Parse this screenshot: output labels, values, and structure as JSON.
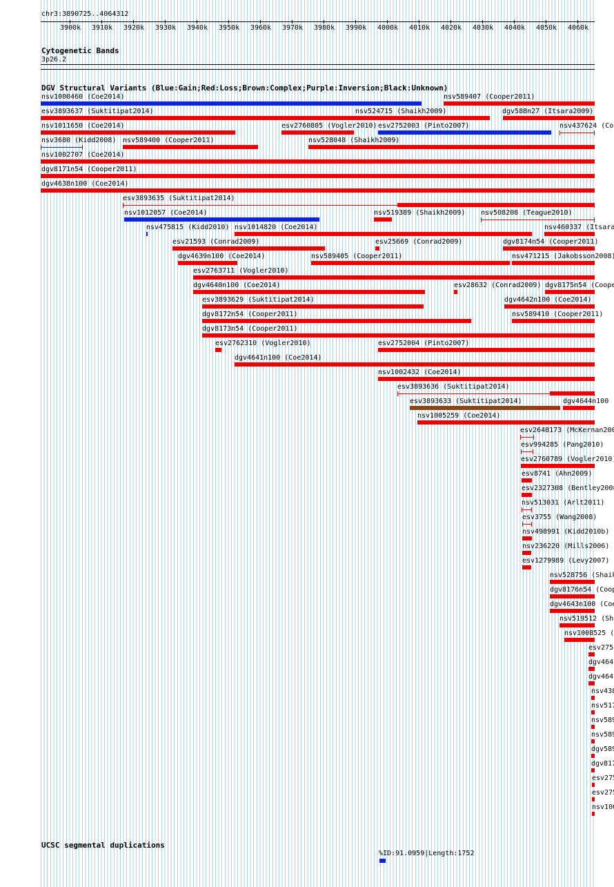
{
  "ruler": {
    "position": "chr3:3890725..4064312",
    "ticks": [
      "3900k",
      "3910k",
      "3920k",
      "3930k",
      "3940k",
      "3950k",
      "3960k",
      "3970k",
      "3980k",
      "3990k",
      "4000k",
      "4010k",
      "4020k",
      "4030k",
      "4040k",
      "4050k",
      "4060k"
    ]
  },
  "cytoband": {
    "title": "Cytogenetic Bands",
    "band": "3p26.2"
  },
  "dgv": {
    "title": "DGV Structural Variants (Blue:Gain;Red:Loss;Brown:Complex;Purple:Inversion;Black:Unknown)",
    "colors": {
      "gain": "#0b22e0",
      "loss": "#ee0000",
      "complex": "#8b4513",
      "inversion": "#800080",
      "unknown": "#000000"
    },
    "variants": [
      {
        "id": "nsv1000460",
        "study": "(Coe2014)",
        "type": "gain"
      },
      {
        "id": "nsv589407",
        "study": "(Cooper2011)",
        "type": "loss"
      },
      {
        "id": "esv3893637",
        "study": "(Suktitipat2014)",
        "type": "loss"
      },
      {
        "id": "nsv524715",
        "study": "(Shaikh2009)",
        "type": "loss"
      },
      {
        "id": "dgv588n27",
        "study": "(Itsara2009)",
        "type": "loss"
      },
      {
        "id": "nsv1011650",
        "study": "(Coe2014)",
        "type": "loss"
      },
      {
        "id": "esv2760805",
        "study": "(Vogler2010)",
        "type": "loss"
      },
      {
        "id": "esv2752003",
        "study": "(Pinto2007)",
        "type": "gain"
      },
      {
        "id": "nsv437624",
        "study": "(Co",
        "type": "loss"
      },
      {
        "id": "nsv3680",
        "study": "(Kidd2008)",
        "type": "gain"
      },
      {
        "id": "nsv589400",
        "study": "(Cooper2011)",
        "type": "loss"
      },
      {
        "id": "nsv528048",
        "study": "(Shaikh2009)",
        "type": "loss"
      },
      {
        "id": "nsv1002707",
        "study": "(Coe2014)",
        "type": "loss"
      },
      {
        "id": "dgv8171n54",
        "study": "(Cooper2011)",
        "type": "loss"
      },
      {
        "id": "dgv4638n100",
        "study": "(Coe2014)",
        "type": "loss"
      },
      {
        "id": "esv3893635",
        "study": "(Suktitipat2014)",
        "type": "loss"
      },
      {
        "id": "nsv1012057",
        "study": "(Coe2014)",
        "type": "gain"
      },
      {
        "id": "nsv519389",
        "study": "(Shaikh2009)",
        "type": "loss"
      },
      {
        "id": "nsv508208",
        "study": "(Teague2010)",
        "type": "loss"
      },
      {
        "id": "nsv475815",
        "study": "(Kidd2010)",
        "type": "gain"
      },
      {
        "id": "nsv1014820",
        "study": "(Coe2014)",
        "type": "loss"
      },
      {
        "id": "nsv460337",
        "study": "(Itsara",
        "type": "loss"
      },
      {
        "id": "esv21593",
        "study": "(Conrad2009)",
        "type": "loss"
      },
      {
        "id": "esv25669",
        "study": "(Conrad2009)",
        "type": "loss"
      },
      {
        "id": "dgv8174n54",
        "study": "(Cooper2011)",
        "type": "loss"
      },
      {
        "id": "dgv4639n100",
        "study": "(Coe2014)",
        "type": "loss"
      },
      {
        "id": "nsv589405",
        "study": "(Cooper2011)",
        "type": "loss"
      },
      {
        "id": "nsv471215",
        "study": "(Jakobsson2008)",
        "type": "loss"
      },
      {
        "id": "esv2763711",
        "study": "(Vogler2010)",
        "type": "loss"
      },
      {
        "id": "dgv4640n100",
        "study": "(Coe2014)",
        "type": "loss"
      },
      {
        "id": "esv28632",
        "study": "(Conrad2009)",
        "type": "loss"
      },
      {
        "id": "dgv8175n54",
        "study": "(Coope",
        "type": "loss"
      },
      {
        "id": "esv3893629",
        "study": "(Suktitipat2014)",
        "type": "loss"
      },
      {
        "id": "dgv4642n100",
        "study": "(Coe2014)",
        "type": "loss"
      },
      {
        "id": "dgv8172n54",
        "study": "(Cooper2011)",
        "type": "loss"
      },
      {
        "id": "nsv589410",
        "study": "(Cooper2011)",
        "type": "loss"
      },
      {
        "id": "dgv8173n54",
        "study": "(Cooper2011)",
        "type": "loss"
      },
      {
        "id": "esv2762310",
        "study": "(Vogler2010)",
        "type": "loss"
      },
      {
        "id": "esv2752004",
        "study": "(Pinto2007)",
        "type": "loss"
      },
      {
        "id": "dgv4641n100",
        "study": "(Coe2014)",
        "type": "loss"
      },
      {
        "id": "nsv1002432",
        "study": "(Coe2014)",
        "type": "loss"
      },
      {
        "id": "esv3893636",
        "study": "(Suktitipat2014)",
        "type": "loss"
      },
      {
        "id": "esv3893633",
        "study": "(Suktitipat2014)",
        "type": "complex"
      },
      {
        "id": "dgv4644n100",
        "study": "(",
        "type": "loss"
      },
      {
        "id": "nsv1005259",
        "study": "(Coe2014)",
        "type": "loss"
      },
      {
        "id": "esv2648173",
        "study": "(McKernan200",
        "type": "loss"
      },
      {
        "id": "esv994285",
        "study": "(Pang2010)",
        "type": "loss"
      },
      {
        "id": "esv2760789",
        "study": "(Vogler2010)",
        "type": "loss"
      },
      {
        "id": "esv8741",
        "study": "(Ahn2009)",
        "type": "loss"
      },
      {
        "id": "esv2327308",
        "study": "(Bentley2008",
        "type": "loss"
      },
      {
        "id": "nsv513031",
        "study": "(Arlt2011)",
        "type": "loss"
      },
      {
        "id": "esv3755",
        "study": "(Wang2008)",
        "type": "loss"
      },
      {
        "id": "nsv498991",
        "study": "(Kidd2010b)",
        "type": "loss"
      },
      {
        "id": "nsv236220",
        "study": "(Mills2006)",
        "type": "loss"
      },
      {
        "id": "esv1279989",
        "study": "(Levy2007)",
        "type": "loss"
      },
      {
        "id": "nsv528756",
        "study": "(Shaik",
        "type": "loss"
      },
      {
        "id": "dgv8176n54",
        "study": "(Coop",
        "type": "loss"
      },
      {
        "id": "dgv4643n100",
        "study": "(Coe",
        "type": "loss"
      },
      {
        "id": "nsv519512",
        "study": "(Sha",
        "type": "loss"
      },
      {
        "id": "nsv1008525",
        "study": "(",
        "type": "loss"
      },
      {
        "id": "esv275",
        "study": "",
        "type": "loss"
      },
      {
        "id": "dgv464",
        "study": "",
        "type": "loss"
      },
      {
        "id": "dgv464",
        "study": "",
        "type": "loss"
      },
      {
        "id": "nsv438",
        "study": "",
        "type": "loss"
      },
      {
        "id": "nsv517",
        "study": "",
        "type": "loss"
      },
      {
        "id": "nsv589",
        "study": "",
        "type": "loss"
      },
      {
        "id": "nsv589",
        "study": "",
        "type": "loss"
      },
      {
        "id": "dgv589",
        "study": "",
        "type": "loss"
      },
      {
        "id": "dgv817",
        "study": "",
        "type": "loss"
      },
      {
        "id": "esv275",
        "study": "",
        "type": "loss"
      },
      {
        "id": "esv275",
        "study": "",
        "type": "loss"
      },
      {
        "id": "nsv100",
        "study": "",
        "type": "loss"
      }
    ]
  },
  "segdups": {
    "title": "UCSC segmental duplications",
    "features": [
      {
        "label": "%ID:91.0959|Length:1752",
        "color": "#0b22e0"
      }
    ]
  }
}
